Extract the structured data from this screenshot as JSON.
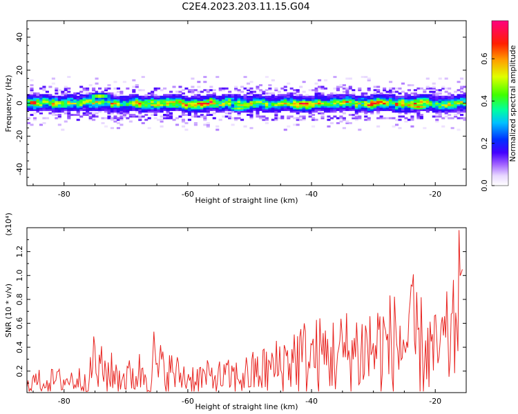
{
  "title": "C2E4.2023.203.11.15.G04",
  "colors": {
    "snr_line": "#e8231f",
    "frame": "#000000"
  },
  "chart_data": [
    {
      "type": "heatmap",
      "title": "C2E4.2023.203.11.15.G04",
      "xlabel": "Height of straight line (km)",
      "ylabel": "Frequency (Hz)",
      "xlim": [
        -86,
        -15
      ],
      "ylim": [
        -50,
        50
      ],
      "x_ticks": [
        -80,
        -60,
        -40,
        -20
      ],
      "y_ticks": [
        -40,
        -20,
        0,
        20,
        40
      ],
      "colorbar": {
        "label": "Normalized spectral amplitude",
        "range": [
          0.0,
          0.78
        ],
        "ticks": [
          0.0,
          0.2,
          0.4,
          0.6
        ],
        "colormap": "rainbow (white-violet-blue-cyan-green-yellow-red-magenta)"
      },
      "band": {
        "center_freq": 0,
        "halfwidth_main": 5,
        "halfwidth_faint": 10,
        "hotspots": [
          {
            "x": -74.5,
            "f": 4.5,
            "amp": 0.55
          },
          {
            "x": -68,
            "f": 0.5,
            "amp": 0.5
          },
          {
            "x": -58,
            "f": 0,
            "amp": 0.72
          },
          {
            "x": -52,
            "f": -3,
            "amp": 0.5
          },
          {
            "x": -45,
            "f": 0,
            "amp": 0.55
          },
          {
            "x": -41.5,
            "f": 0,
            "amp": 0.75
          },
          {
            "x": -39,
            "f": 0,
            "amp": 0.6
          },
          {
            "x": -30,
            "f": 0,
            "amp": 0.7
          },
          {
            "x": -23,
            "f": -2,
            "amp": 0.65
          }
        ]
      }
    },
    {
      "type": "line",
      "xlabel": "Height of straight line (km)",
      "ylabel": "SNR (10 * v/v)",
      "y_scale_label": "(x10⁴)",
      "xlim": [
        -86,
        -15
      ],
      "ylim": [
        0.02,
        1.4
      ],
      "x_ticks": [
        -80,
        -60,
        -40,
        -20
      ],
      "y_ticks": [
        0.2,
        0.4,
        0.6,
        0.8,
        1.0,
        1.2
      ],
      "series": [
        {
          "x_range": [
            -86,
            -15.5
          ],
          "envelope": [
            {
              "x": -86,
              "mean": 0.1,
              "amp": 0.12
            },
            {
              "x": -76,
              "mean": 0.12,
              "amp": 0.15
            },
            {
              "x": -75.2,
              "mean": 0.2,
              "amp": 0.3
            },
            {
              "x": -70,
              "mean": 0.13,
              "amp": 0.17
            },
            {
              "x": -65.5,
              "mean": 0.2,
              "amp": 0.32
            },
            {
              "x": -60,
              "mean": 0.13,
              "amp": 0.17
            },
            {
              "x": -52,
              "mean": 0.13,
              "amp": 0.2
            },
            {
              "x": -46,
              "mean": 0.2,
              "amp": 0.3
            },
            {
              "x": -43,
              "mean": 0.28,
              "amp": 0.4
            },
            {
              "x": -36,
              "mean": 0.3,
              "amp": 0.45
            },
            {
              "x": -30,
              "mean": 0.35,
              "amp": 0.55
            },
            {
              "x": -23.5,
              "mean": 0.4,
              "amp": 0.6
            },
            {
              "x": -20,
              "mean": 0.3,
              "amp": 0.45
            },
            {
              "x": -17,
              "mean": 0.45,
              "amp": 0.6
            },
            {
              "x": -16,
              "mean": 0.7,
              "amp": 0.7
            },
            {
              "x": -15.5,
              "mean": 0.55,
              "amp": 0.5
            }
          ],
          "peaks": [
            {
              "x": -75.2,
              "y": 0.49
            },
            {
              "x": -65.5,
              "y": 0.53
            },
            {
              "x": -23.5,
              "y": 1.01
            },
            {
              "x": -16.2,
              "y": 1.38
            },
            {
              "x": -15.8,
              "y": 1.02
            }
          ]
        }
      ]
    }
  ]
}
